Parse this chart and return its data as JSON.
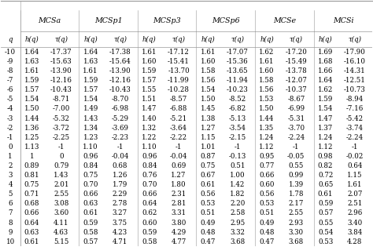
{
  "headers_top": [
    "MCSa",
    "MCSp1",
    "MCSp3",
    "MCSp6",
    "MCSe",
    "MCSi"
  ],
  "col_labels_sub": [
    "q",
    "h(q)",
    "τ(q)",
    "h(q)",
    "τ(q)",
    "h(q)",
    "τ(q)",
    "h(q)",
    "τ(q)",
    "h(q)",
    "τ(q)",
    "h(q)",
    "τ(q)"
  ],
  "data_str_vals": [
    [
      "-10",
      "1.64",
      "-17.37",
      "1.64",
      "-17.38",
      "1.61",
      "-17.12",
      "1.61",
      "-17.07",
      "1.62",
      "-17.20",
      "1.69",
      "-17.90"
    ],
    [
      "-9",
      "1.63",
      "-15.63",
      "1.63",
      "-15.64",
      "1.60",
      "-15.41",
      "1.60",
      "-15.36",
      "1.61",
      "-15.49",
      "1.68",
      "-16.10"
    ],
    [
      "-8",
      "1.61",
      "-13.90",
      "1.61",
      "-13.90",
      "1.59",
      "-13.70",
      "1.58",
      "-13.65",
      "1.60",
      "-13.78",
      "1.66",
      "-14.31"
    ],
    [
      "-7",
      "1.59",
      "-12.16",
      "1.59",
      "-12.16",
      "1.57",
      "-11.99",
      "1.56",
      "-11.94",
      "1.58",
      "-12.07",
      "1.64",
      "-12.51"
    ],
    [
      "-6",
      "1.57",
      "-10.43",
      "1.57",
      "-10.43",
      "1.55",
      "-10.28",
      "1.54",
      "-10.23",
      "1.56",
      "-10.37",
      "1.62",
      "-10.73"
    ],
    [
      "-5",
      "1.54",
      "-8.71",
      "1.54",
      "-8.70",
      "1.51",
      "-8.57",
      "1.50",
      "-8.52",
      "1.53",
      "-8.67",
      "1.59",
      "-8.94"
    ],
    [
      "-4",
      "1.50",
      "-7.00",
      "1.49",
      "-6.98",
      "1.47",
      "-6.88",
      "1.45",
      "-6.82",
      "1.50",
      "-6.99",
      "1.54",
      "-7.16"
    ],
    [
      "-3",
      "1.44",
      "-5.32",
      "1.43",
      "-5.29",
      "1.40",
      "-5.21",
      "1.38",
      "-5.13",
      "1.44",
      "-5.31",
      "1.47",
      "-5.42"
    ],
    [
      "-2",
      "1.36",
      "-3.72",
      "1.34",
      "-3.69",
      "1.32",
      "-3.64",
      "1.27",
      "-3.54",
      "1.35",
      "-3.70",
      "1.37",
      "-3.74"
    ],
    [
      "-1",
      "1.25",
      "-2.25",
      "1.23",
      "-2.23",
      "1.22",
      "-2.22",
      "1.15",
      "-2.15",
      "1.24",
      "-2.24",
      "1.24",
      "-2.24"
    ],
    [
      "0",
      "1.13",
      "-1",
      "1.10",
      "-1",
      "1.10",
      "-1",
      "1.01",
      "-1",
      "1.12",
      "-1",
      "1.12",
      "-1"
    ],
    [
      "1",
      "1",
      "0",
      "0.96",
      "-0.04",
      "0.96",
      "-0.04",
      "0.87",
      "-0.13",
      "0.95",
      "-0.05",
      "0.98",
      "-0.02"
    ],
    [
      "2",
      "0.89",
      "0.79",
      "0.84",
      "0.68",
      "0.84",
      "0.69",
      "0.75",
      "0.51",
      "0.77",
      "0.55",
      "0.82",
      "0.64"
    ],
    [
      "3",
      "0.81",
      "1.43",
      "0.75",
      "1.26",
      "0.76",
      "1.27",
      "0.67",
      "1.00",
      "0.66",
      "0.99",
      "0.72",
      "1.15"
    ],
    [
      "4",
      "0.75",
      "2.01",
      "0.70",
      "1.79",
      "0.70",
      "1.80",
      "0.61",
      "1.42",
      "0.60",
      "1.39",
      "0.65",
      "1.61"
    ],
    [
      "5",
      "0.71",
      "2.55",
      "0.66",
      "2.29",
      "0.66",
      "2.31",
      "0.56",
      "1.82",
      "0.56",
      "1.78",
      "0.61",
      "2.07"
    ],
    [
      "6",
      "0.68",
      "3.08",
      "0.63",
      "2.78",
      "0.64",
      "2.81",
      "0.53",
      "2.20",
      "0.53",
      "2.17",
      "0.59",
      "2.51"
    ],
    [
      "7",
      "0.66",
      "3.60",
      "0.61",
      "3.27",
      "0.62",
      "3.31",
      "0.51",
      "2.58",
      "0.51",
      "2.55",
      "0.57",
      "2.96"
    ],
    [
      "8",
      "0.64",
      "4.11",
      "0.59",
      "3.75",
      "0.60",
      "3.80",
      "0.49",
      "2.95",
      "0.49",
      "2.93",
      "0.55",
      "3.40"
    ],
    [
      "9",
      "0.63",
      "4.63",
      "0.58",
      "4.23",
      "0.59",
      "4.29",
      "0.48",
      "3.32",
      "0.48",
      "3.30",
      "0.54",
      "3.84"
    ],
    [
      "10",
      "0.61",
      "5.15",
      "0.57",
      "4.71",
      "0.58",
      "4.77",
      "0.47",
      "3.68",
      "0.47",
      "3.68",
      "0.53",
      "4.28"
    ]
  ],
  "bg_color": "#ffffff",
  "line_color": "#999999",
  "text_color": "#000000",
  "font_size": 6.2,
  "header_font_size": 6.8
}
